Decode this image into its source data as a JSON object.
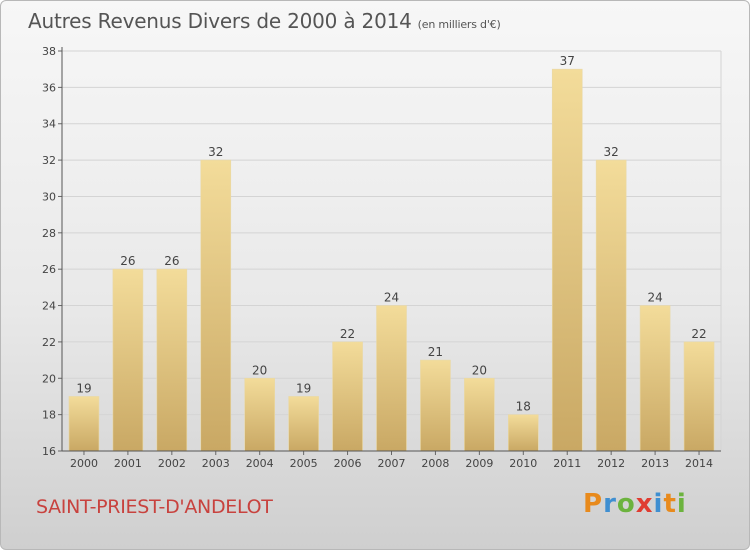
{
  "page": {
    "title": "Autres Revenus Divers de 2000 à 2014",
    "subtitle": "(en milliers d'€)",
    "commune": "SAINT-PRIEST-D'ANDELOT",
    "logo": {
      "letters": [
        "P",
        "r",
        "o",
        "x",
        "i",
        "t",
        "i"
      ],
      "colors": [
        "#e88a1c",
        "#3f8fd1",
        "#6cb33e",
        "#e03c31",
        "#3f8fd1",
        "#e88a1c",
        "#6cb33e"
      ]
    }
  },
  "chart_data": {
    "type": "bar",
    "categories": [
      "2000",
      "2001",
      "2002",
      "2003",
      "2004",
      "2005",
      "2006",
      "2007",
      "2008",
      "2009",
      "2010",
      "2011",
      "2012",
      "2013",
      "2014"
    ],
    "values": [
      19,
      26,
      26,
      32,
      20,
      19,
      22,
      24,
      21,
      20,
      18,
      37,
      32,
      24,
      22
    ],
    "ylim": [
      16,
      38
    ],
    "yticks": [
      16,
      18,
      20,
      22,
      24,
      26,
      28,
      30,
      32,
      34,
      36,
      38
    ],
    "grid": true,
    "bar_color": "#e4c77e"
  }
}
